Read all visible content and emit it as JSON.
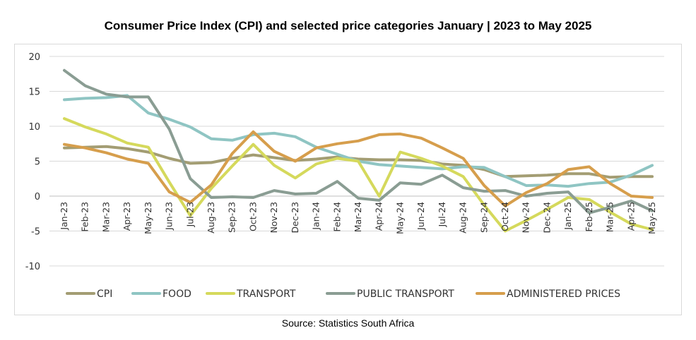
{
  "title": "Consumer Price Index (CPI) and selected price categories January | 2023 to May 2025",
  "source": "Source: Statistics South Africa",
  "chart_data": {
    "type": "line",
    "ylim": [
      -10,
      20
    ],
    "yticks": [
      -10,
      -5,
      0,
      5,
      10,
      15,
      20
    ],
    "ytick_labels": [
      "-10",
      "-5",
      "0",
      "5",
      "10",
      "15",
      "20"
    ],
    "grid": true,
    "legend_position": "bottom",
    "categories": [
      "Jan-23",
      "Feb-23",
      "Mar-23",
      "Apr-23",
      "May-23",
      "Jun-23",
      "Jul-23",
      "Aug-23",
      "Sep-23",
      "Oct-23",
      "Nov-23",
      "Dec-23",
      "Jan-24",
      "Feb-24",
      "Mar-24",
      "Apr-24",
      "May-24",
      "Jun-24",
      "Jul-24",
      "Aug-24",
      "Sep-24",
      "Oct-24",
      "Nov-24",
      "Dec-24",
      "Jan-25",
      "Feb-25",
      "Mar-25",
      "Apr-25",
      "May-25"
    ],
    "series": [
      {
        "name": "CPI",
        "color": "#a39d73",
        "values": [
          6.9,
          7.0,
          7.1,
          6.8,
          6.3,
          5.4,
          4.7,
          4.8,
          5.4,
          5.9,
          5.5,
          5.1,
          5.3,
          5.6,
          5.3,
          5.2,
          5.2,
          5.1,
          4.6,
          4.4,
          3.8,
          2.8,
          2.9,
          3.0,
          3.2,
          3.2,
          2.7,
          2.8,
          2.8
        ]
      },
      {
        "name": "FOOD",
        "color": "#8fc5c3",
        "values": [
          13.8,
          14.0,
          14.1,
          14.4,
          11.9,
          11.0,
          9.9,
          8.2,
          8.0,
          8.8,
          9.0,
          8.5,
          7.0,
          6.0,
          5.0,
          4.5,
          4.3,
          4.1,
          3.9,
          4.2,
          4.1,
          2.8,
          1.5,
          1.6,
          1.4,
          1.8,
          2.0,
          3.0,
          4.4
        ]
      },
      {
        "name": "TRANSPORT",
        "color": "#d5d95c",
        "values": [
          11.1,
          9.9,
          8.9,
          7.6,
          7.0,
          2.0,
          -2.8,
          1.1,
          4.3,
          7.4,
          4.4,
          2.6,
          4.6,
          5.4,
          5.0,
          0.0,
          6.3,
          5.4,
          4.3,
          2.8,
          -1.3,
          -5.0,
          -3.5,
          -1.9,
          -0.2,
          -0.5,
          -2.3,
          -4.0,
          -4.8
        ]
      },
      {
        "name": "PUBLIC TRANSPORT",
        "color": "#8a9d93",
        "values": [
          18.0,
          15.8,
          14.6,
          14.2,
          14.2,
          9.6,
          2.5,
          -0.2,
          -0.1,
          -0.2,
          0.8,
          0.3,
          0.4,
          2.1,
          -0.3,
          -0.6,
          1.9,
          1.7,
          3.0,
          1.2,
          0.7,
          0.8,
          0.0,
          0.4,
          0.6,
          -2.4,
          -1.6,
          -0.7,
          -2.1
        ]
      },
      {
        "name": "ADMINISTERED PRICES",
        "color": "#d69e4c",
        "values": [
          7.4,
          6.9,
          6.2,
          5.3,
          4.7,
          0.6,
          -0.9,
          1.6,
          6.1,
          9.2,
          6.4,
          5.0,
          6.9,
          7.5,
          7.9,
          8.8,
          8.9,
          8.3,
          6.9,
          5.4,
          1.5,
          -1.4,
          0.5,
          1.8,
          3.8,
          4.2,
          1.8,
          0.0,
          -0.2
        ]
      }
    ]
  }
}
